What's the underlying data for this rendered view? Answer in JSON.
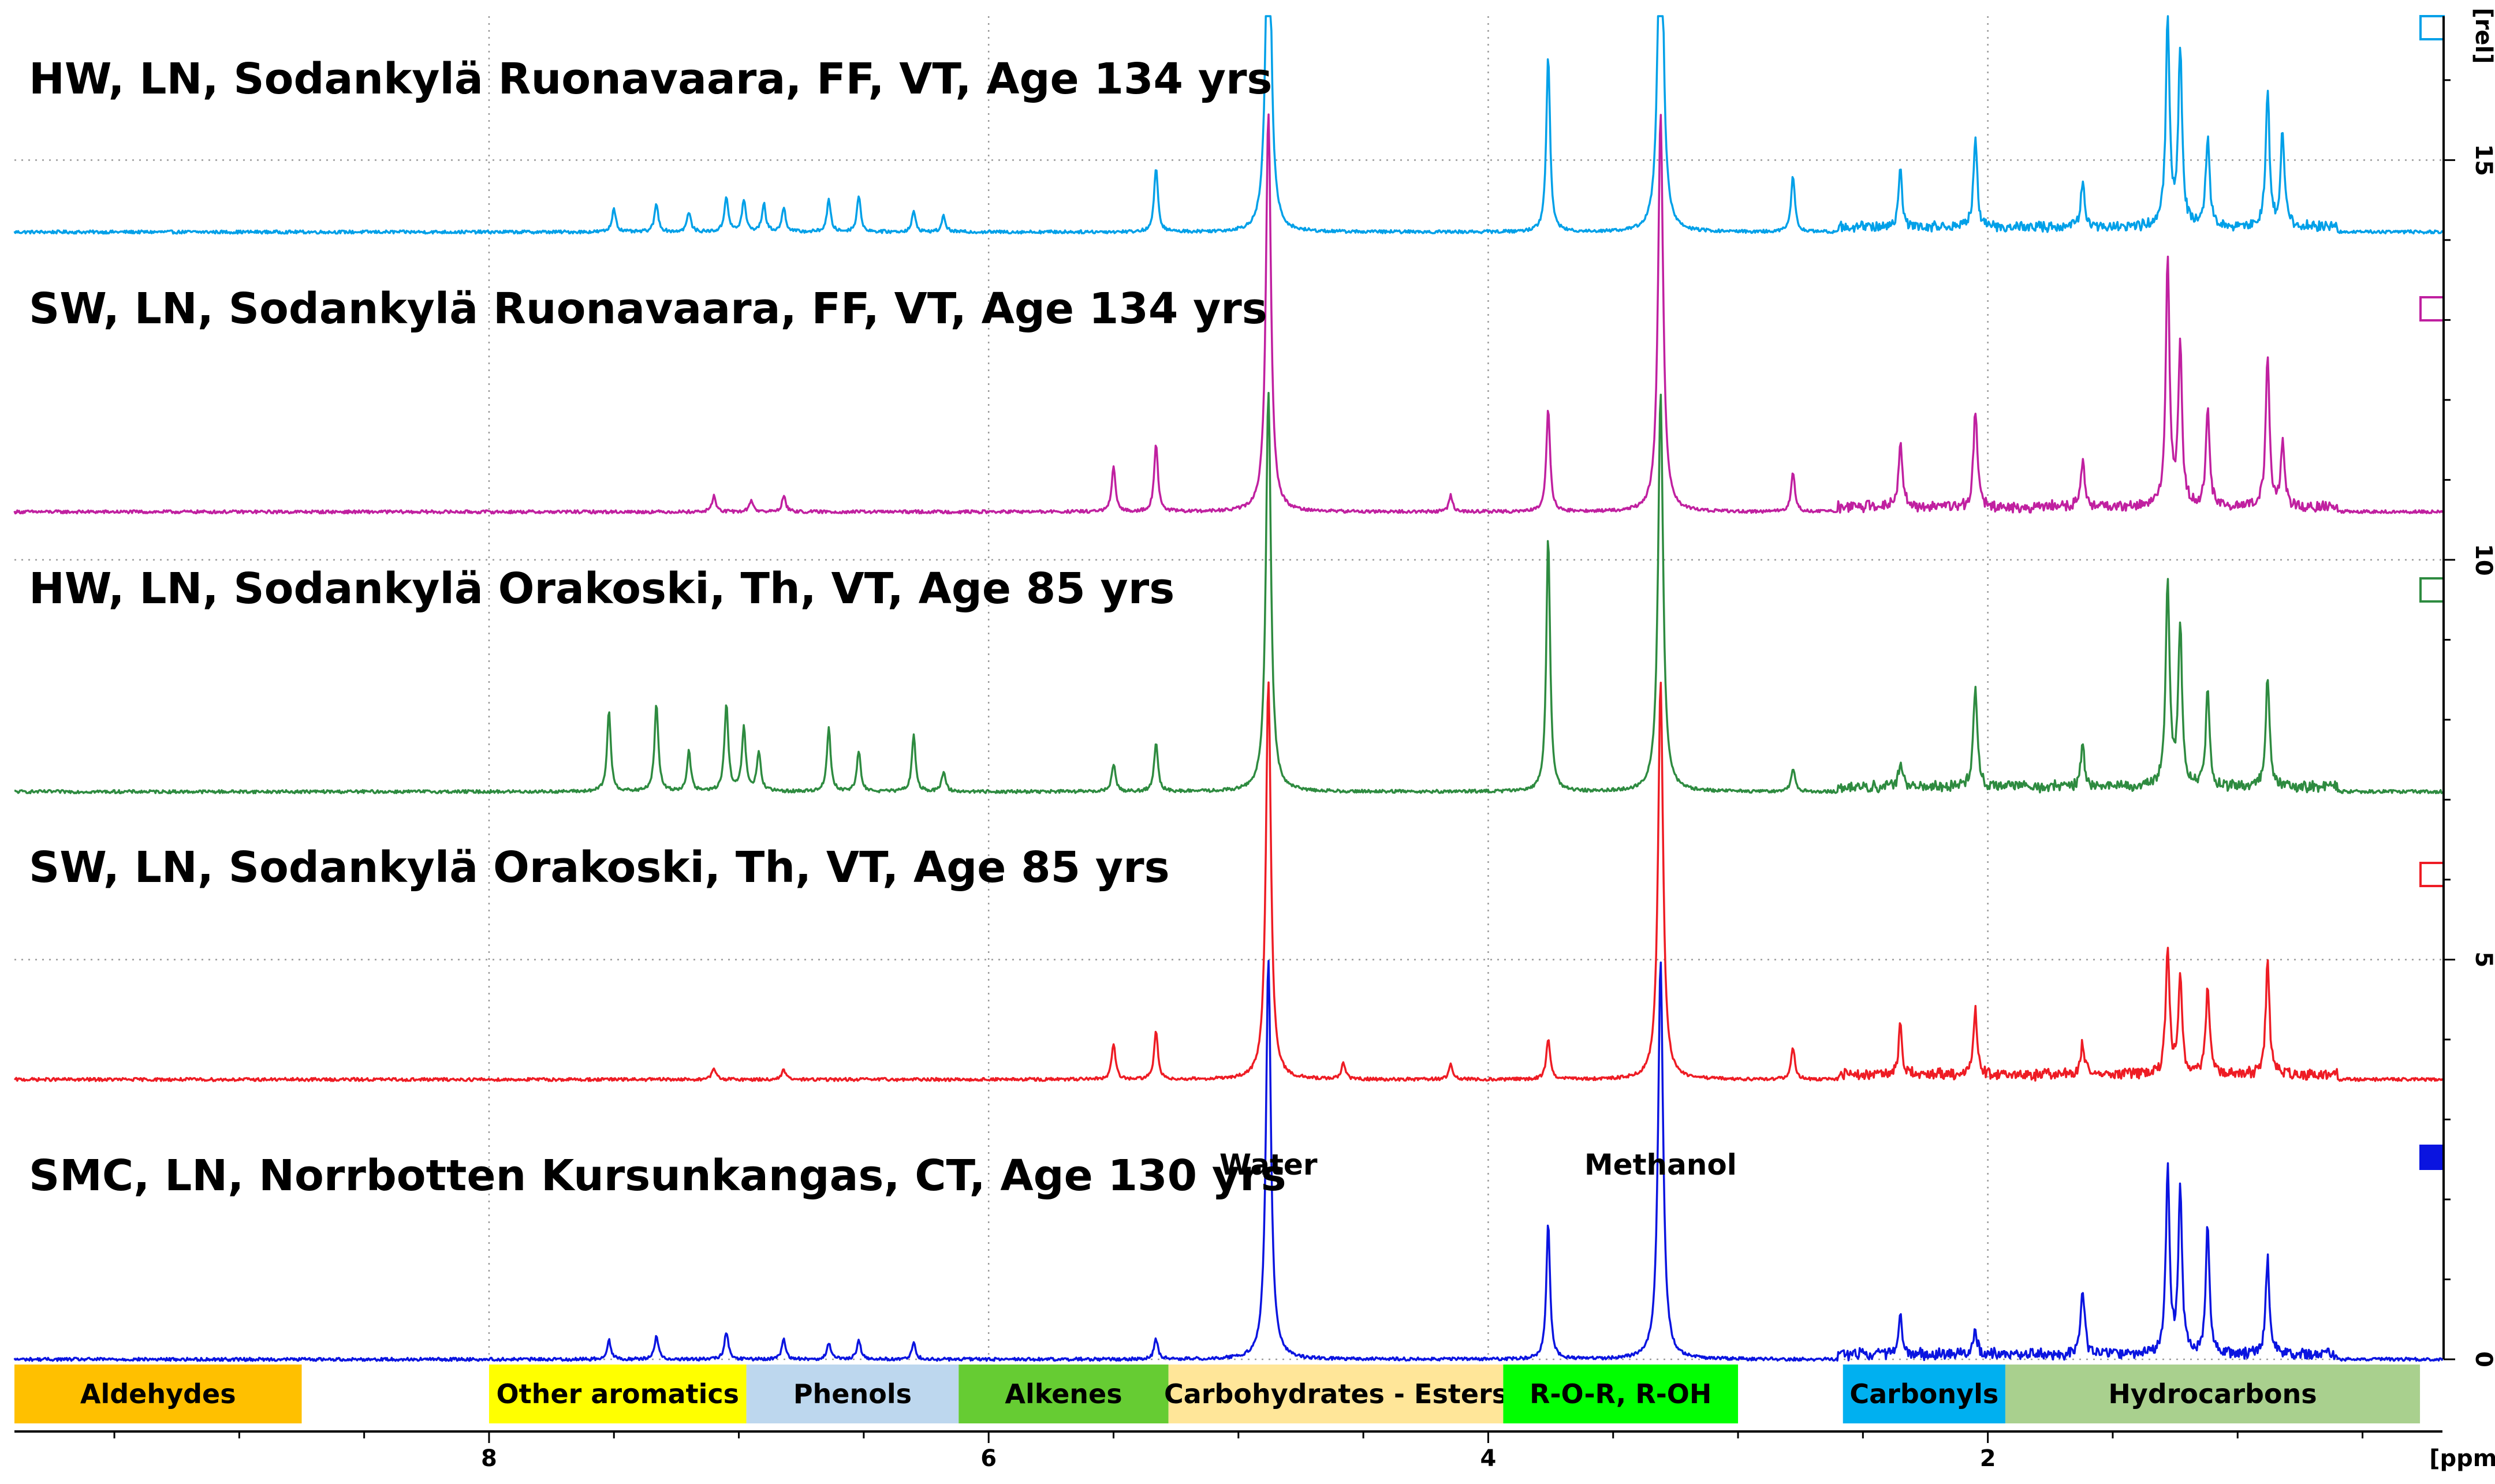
{
  "chart_data": {
    "type": "line",
    "subtype": "stacked NMR spectra",
    "x_axis": {
      "label": "[ppm]",
      "reversed": true,
      "range": [
        9.9,
        0.18
      ],
      "ticks": [
        8,
        6,
        4,
        2
      ],
      "tick_labels": [
        "8",
        "6",
        "4",
        "2"
      ]
    },
    "y_axis": {
      "label": "[rel]",
      "range": [
        0,
        16.8
      ],
      "ticks": [
        0,
        5,
        10,
        15
      ],
      "tick_labels": [
        "0",
        "5",
        "10",
        "15"
      ],
      "grid": true,
      "side": "right"
    },
    "series": [
      {
        "name": "HW, LN, Sodankylä Ruonavaara, FF, VT, Age 134 yrs",
        "color": "#00a0e8",
        "baseline": 14.1,
        "peaks": [
          {
            "ppm": 7.5,
            "h": 0.3
          },
          {
            "ppm": 7.33,
            "h": 0.35
          },
          {
            "ppm": 7.2,
            "h": 0.25
          },
          {
            "ppm": 7.05,
            "h": 0.45
          },
          {
            "ppm": 6.98,
            "h": 0.4
          },
          {
            "ppm": 6.9,
            "h": 0.35
          },
          {
            "ppm": 6.82,
            "h": 0.3
          },
          {
            "ppm": 6.64,
            "h": 0.4
          },
          {
            "ppm": 6.52,
            "h": 0.45
          },
          {
            "ppm": 6.3,
            "h": 0.25
          },
          {
            "ppm": 6.18,
            "h": 0.2
          },
          {
            "ppm": 5.33,
            "h": 0.8
          },
          {
            "ppm": 4.88,
            "h": 5.0
          },
          {
            "ppm": 3.76,
            "h": 2.2
          },
          {
            "ppm": 3.31,
            "h": 5.0
          },
          {
            "ppm": 2.78,
            "h": 0.7
          },
          {
            "ppm": 2.35,
            "h": 0.7
          },
          {
            "ppm": 2.05,
            "h": 1.1
          },
          {
            "ppm": 1.62,
            "h": 0.6
          },
          {
            "ppm": 1.28,
            "h": 2.6
          },
          {
            "ppm": 1.23,
            "h": 2.2
          },
          {
            "ppm": 1.12,
            "h": 1.1
          },
          {
            "ppm": 0.88,
            "h": 1.7
          },
          {
            "ppm": 0.82,
            "h": 1.2
          }
        ]
      },
      {
        "name": "SW, LN, Sodankylä Ruonavaara, FF, VT, Age 134 yrs",
        "color": "#c020a0",
        "baseline": 10.6,
        "peaks": [
          {
            "ppm": 7.1,
            "h": 0.2
          },
          {
            "ppm": 6.95,
            "h": 0.15
          },
          {
            "ppm": 6.82,
            "h": 0.2
          },
          {
            "ppm": 5.5,
            "h": 0.55
          },
          {
            "ppm": 5.33,
            "h": 0.85
          },
          {
            "ppm": 4.88,
            "h": 5.0
          },
          {
            "ppm": 4.15,
            "h": 0.2
          },
          {
            "ppm": 3.76,
            "h": 1.3
          },
          {
            "ppm": 3.31,
            "h": 5.0
          },
          {
            "ppm": 2.78,
            "h": 0.5
          },
          {
            "ppm": 2.35,
            "h": 0.8
          },
          {
            "ppm": 2.05,
            "h": 1.2
          },
          {
            "ppm": 1.62,
            "h": 0.6
          },
          {
            "ppm": 1.28,
            "h": 3.1
          },
          {
            "ppm": 1.23,
            "h": 2.0
          },
          {
            "ppm": 1.12,
            "h": 1.2
          },
          {
            "ppm": 0.88,
            "h": 1.9
          },
          {
            "ppm": 0.82,
            "h": 0.8
          }
        ]
      },
      {
        "name": "HW, LN, Sodankylä Orakoski, Th, VT, Age 85 yrs",
        "color": "#2e8b40",
        "baseline": 7.1,
        "peaks": [
          {
            "ppm": 7.52,
            "h": 1.0
          },
          {
            "ppm": 7.33,
            "h": 1.1
          },
          {
            "ppm": 7.2,
            "h": 0.5
          },
          {
            "ppm": 7.05,
            "h": 1.1
          },
          {
            "ppm": 6.98,
            "h": 0.8
          },
          {
            "ppm": 6.92,
            "h": 0.5
          },
          {
            "ppm": 6.64,
            "h": 0.8
          },
          {
            "ppm": 6.52,
            "h": 0.5
          },
          {
            "ppm": 6.3,
            "h": 0.7
          },
          {
            "ppm": 6.18,
            "h": 0.25
          },
          {
            "ppm": 5.5,
            "h": 0.35
          },
          {
            "ppm": 5.33,
            "h": 0.6
          },
          {
            "ppm": 4.88,
            "h": 5.0
          },
          {
            "ppm": 3.76,
            "h": 3.2
          },
          {
            "ppm": 3.31,
            "h": 5.0
          },
          {
            "ppm": 2.78,
            "h": 0.3
          },
          {
            "ppm": 2.35,
            "h": 0.3
          },
          {
            "ppm": 2.05,
            "h": 1.3
          },
          {
            "ppm": 1.62,
            "h": 0.5
          },
          {
            "ppm": 1.28,
            "h": 2.6
          },
          {
            "ppm": 1.23,
            "h": 2.0
          },
          {
            "ppm": 1.12,
            "h": 1.2
          },
          {
            "ppm": 0.88,
            "h": 1.4
          }
        ]
      },
      {
        "name": "SW, LN, Sodankylä Orakoski, Th, VT, Age 85 yrs",
        "color": "#ee1c24",
        "baseline": 3.5,
        "peaks": [
          {
            "ppm": 7.1,
            "h": 0.15
          },
          {
            "ppm": 6.82,
            "h": 0.12
          },
          {
            "ppm": 5.5,
            "h": 0.45
          },
          {
            "ppm": 5.33,
            "h": 0.6
          },
          {
            "ppm": 4.88,
            "h": 5.0
          },
          {
            "ppm": 4.58,
            "h": 0.2
          },
          {
            "ppm": 4.15,
            "h": 0.2
          },
          {
            "ppm": 3.76,
            "h": 0.5
          },
          {
            "ppm": 3.31,
            "h": 5.0
          },
          {
            "ppm": 2.78,
            "h": 0.4
          },
          {
            "ppm": 2.35,
            "h": 0.6
          },
          {
            "ppm": 2.05,
            "h": 0.8
          },
          {
            "ppm": 1.62,
            "h": 0.4
          },
          {
            "ppm": 1.28,
            "h": 1.6
          },
          {
            "ppm": 1.23,
            "h": 1.2
          },
          {
            "ppm": 1.12,
            "h": 1.1
          },
          {
            "ppm": 0.88,
            "h": 1.4
          }
        ]
      },
      {
        "name": "SMC, LN, Norrbotten Kursunkangas, CT, Age 130 yrs",
        "color": "#0a14e0",
        "baseline": 0.0,
        "peaks": [
          {
            "ppm": 7.52,
            "h": 0.25
          },
          {
            "ppm": 7.33,
            "h": 0.3
          },
          {
            "ppm": 7.05,
            "h": 0.35
          },
          {
            "ppm": 6.82,
            "h": 0.25
          },
          {
            "ppm": 6.64,
            "h": 0.2
          },
          {
            "ppm": 6.52,
            "h": 0.25
          },
          {
            "ppm": 6.3,
            "h": 0.2
          },
          {
            "ppm": 5.33,
            "h": 0.25
          },
          {
            "ppm": 4.88,
            "h": 5.0
          },
          {
            "ppm": 3.76,
            "h": 1.7
          },
          {
            "ppm": 3.31,
            "h": 5.0
          },
          {
            "ppm": 2.35,
            "h": 0.5
          },
          {
            "ppm": 2.05,
            "h": 0.3
          },
          {
            "ppm": 1.62,
            "h": 0.8
          },
          {
            "ppm": 1.28,
            "h": 2.3
          },
          {
            "ppm": 1.23,
            "h": 2.0
          },
          {
            "ppm": 1.12,
            "h": 1.6
          },
          {
            "ppm": 0.88,
            "h": 1.2
          }
        ]
      }
    ],
    "annotations": [
      {
        "text": "Water",
        "ppm": 4.88
      },
      {
        "text": "Methanol",
        "ppm": 3.31
      }
    ],
    "regions": [
      {
        "label": "Aldehydes",
        "from": 9.9,
        "to": 8.75,
        "color": "#ffc000"
      },
      {
        "label": "Other aromatics",
        "from": 8.0,
        "to": 6.97,
        "color": "#ffff00"
      },
      {
        "label": "Phenols",
        "from": 6.97,
        "to": 6.12,
        "color": "#bdd7ee"
      },
      {
        "label": "Alkenes",
        "from": 6.12,
        "to": 5.28,
        "color": "#66cc33"
      },
      {
        "label": "Carbohydrates - Esters",
        "from": 5.28,
        "to": 3.94,
        "color": "#ffe699"
      },
      {
        "label": "R-O-R, R-OH",
        "from": 3.94,
        "to": 3.0,
        "color": "#00ff00"
      },
      {
        "label": "Carbonyls",
        "from": 2.58,
        "to": 1.93,
        "color": "#00b0f0"
      },
      {
        "label": "Hydrocarbons",
        "from": 1.93,
        "to": 0.27,
        "color": "#a9d08e"
      }
    ]
  }
}
